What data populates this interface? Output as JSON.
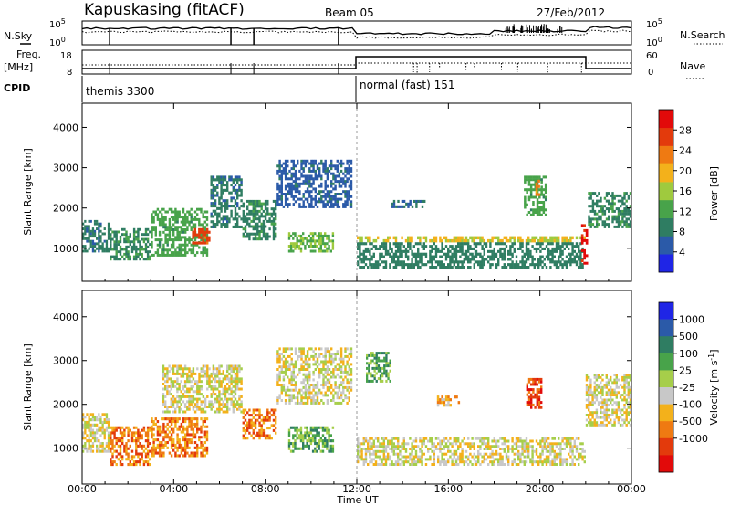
{
  "header": {
    "station": "Kapuskasing (fitACF)",
    "beam": "Beam 05",
    "date": "27/Feb/2012"
  },
  "left_labels": {
    "nsky": "N.Sky",
    "freq_line1": "Freq.",
    "freq_line2": "[MHz]",
    "cpid": "CPID"
  },
  "right_labels": {
    "nsearch": "N.Search",
    "nave": "Nave"
  },
  "strip_ticks": {
    "noise_left": [
      "10^5",
      "10^0"
    ],
    "noise_right": [
      "10^5",
      "10^0"
    ],
    "freq_left": [
      "18",
      "8"
    ],
    "nave_right": [
      "60",
      "0"
    ]
  },
  "cpid_segments": [
    {
      "label": "themis 3300",
      "start_hour": 0
    },
    {
      "label": "normal (fast) 151",
      "start_hour": 12
    }
  ],
  "colors": {
    "power": [
      "#1f25e6",
      "#2b5aa8",
      "#2f7d62",
      "#48a34a",
      "#9fca3e",
      "#f3b11b",
      "#ef7a12",
      "#e33a0c",
      "#e20a0a"
    ],
    "velocity": [
      "#1f25e6",
      "#2b5aa8",
      "#2f7d62",
      "#48a34a",
      "#a6ce4a",
      "#c8c8c8",
      "#f3b11b",
      "#ef7a12",
      "#e33a0c",
      "#e20a0a"
    ]
  },
  "chart_data": [
    {
      "type": "heatmap",
      "name": "power",
      "ylabel": "Slant Range [km]",
      "ylim": [
        180,
        4600
      ],
      "y_ticks": [
        1000,
        2000,
        3000,
        4000
      ],
      "xlim_hours": [
        0,
        24
      ],
      "colorbar": {
        "label": "Power [dB]",
        "min": 0,
        "max": 32,
        "ticks": [
          4,
          8,
          12,
          16,
          20,
          24,
          28
        ]
      },
      "regions": [
        {
          "t0": 0.0,
          "t1": 1.2,
          "r0": 900,
          "r1": 1700,
          "v": 8
        },
        {
          "t0": 1.2,
          "t1": 3.0,
          "r0": 700,
          "r1": 1500,
          "v": 10
        },
        {
          "t0": 3.0,
          "t1": 5.5,
          "r0": 800,
          "r1": 2000,
          "v": 12
        },
        {
          "t0": 4.8,
          "t1": 5.6,
          "r0": 1100,
          "r1": 1500,
          "v": 26
        },
        {
          "t0": 5.6,
          "t1": 7.0,
          "r0": 1500,
          "r1": 2800,
          "v": 8
        },
        {
          "t0": 7.0,
          "t1": 8.5,
          "r0": 1200,
          "r1": 2200,
          "v": 10
        },
        {
          "t0": 8.5,
          "t1": 11.8,
          "r0": 2000,
          "r1": 3200,
          "v": 6
        },
        {
          "t0": 9.0,
          "t1": 11.0,
          "r0": 900,
          "r1": 1400,
          "v": 14
        },
        {
          "t0": 12.0,
          "t1": 22.0,
          "r0": 1150,
          "r1": 1300,
          "v": 18
        },
        {
          "t0": 12.0,
          "t1": 22.0,
          "r0": 500,
          "r1": 1150,
          "v": 9
        },
        {
          "t0": 13.5,
          "t1": 15.0,
          "r0": 2000,
          "r1": 2200,
          "v": 7
        },
        {
          "t0": 19.3,
          "t1": 20.3,
          "r0": 1800,
          "r1": 2800,
          "v": 12
        },
        {
          "t0": 19.8,
          "t1": 20.0,
          "r0": 2300,
          "r1": 2700,
          "v": 22
        },
        {
          "t0": 21.8,
          "t1": 22.1,
          "r0": 600,
          "r1": 1600,
          "v": 29
        },
        {
          "t0": 22.1,
          "t1": 24.0,
          "r0": 1500,
          "r1": 2400,
          "v": 10
        }
      ]
    },
    {
      "type": "heatmap",
      "name": "velocity",
      "ylabel": "Slant Range [km]",
      "xlabel": "Time UT",
      "ylim": [
        180,
        4600
      ],
      "y_ticks": [
        1000,
        2000,
        3000,
        4000
      ],
      "x_ticks": [
        "00:00",
        "04:00",
        "08:00",
        "12:00",
        "16:00",
        "20:00",
        "00:00"
      ],
      "xlim_hours": [
        0,
        24
      ],
      "colorbar": {
        "label": "Velocity [m s^-1]",
        "ticks": [
          "1000",
          "500",
          "100",
          "25",
          "-25",
          "-100",
          "-500",
          "-1000"
        ]
      },
      "regions": [
        {
          "t0": 0.0,
          "t1": 1.2,
          "r0": 900,
          "r1": 1800,
          "v": 5
        },
        {
          "t0": 1.2,
          "t1": 3.0,
          "r0": 600,
          "r1": 1500,
          "v": 7
        },
        {
          "t0": 3.0,
          "t1": 5.5,
          "r0": 800,
          "r1": 1700,
          "v": 7
        },
        {
          "t0": 3.5,
          "t1": 7.0,
          "r0": 1800,
          "r1": 2900,
          "v": 5
        },
        {
          "t0": 7.0,
          "t1": 8.5,
          "r0": 1200,
          "r1": 1900,
          "v": 7
        },
        {
          "t0": 8.5,
          "t1": 11.8,
          "r0": 2000,
          "r1": 3300,
          "v": 5
        },
        {
          "t0": 9.0,
          "t1": 11.0,
          "r0": 900,
          "r1": 1500,
          "v": 3
        },
        {
          "t0": 12.0,
          "t1": 22.0,
          "r0": 600,
          "r1": 1250,
          "v": 5
        },
        {
          "t0": 12.4,
          "t1": 13.5,
          "r0": 2500,
          "r1": 3200,
          "v": 3
        },
        {
          "t0": 15.5,
          "t1": 16.5,
          "r0": 1950,
          "r1": 2200,
          "v": 6
        },
        {
          "t0": 19.4,
          "t1": 20.1,
          "r0": 1900,
          "r1": 2600,
          "v": 8
        },
        {
          "t0": 22.0,
          "t1": 24.0,
          "r0": 1500,
          "r1": 2700,
          "v": 5
        }
      ]
    }
  ]
}
